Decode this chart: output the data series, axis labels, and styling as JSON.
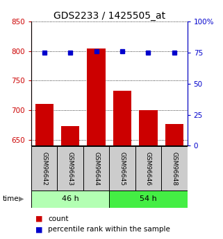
{
  "title": "GDS2233 / 1425505_at",
  "samples": [
    "GSM96642",
    "GSM96643",
    "GSM96644",
    "GSM96645",
    "GSM96646",
    "GSM96648"
  ],
  "counts": [
    711,
    673,
    804,
    733,
    700,
    677
  ],
  "percentiles": [
    75,
    75,
    76,
    76,
    75,
    75
  ],
  "group_labels": [
    "46 h",
    "54 h"
  ],
  "group_colors": [
    "#b3ffb3",
    "#44ee44"
  ],
  "ylim_left": [
    640,
    850
  ],
  "ylim_right": [
    0,
    100
  ],
  "yticks_left": [
    650,
    700,
    750,
    800,
    850
  ],
  "yticks_right": [
    0,
    25,
    50,
    75,
    100
  ],
  "bar_color": "#cc0000",
  "dot_color": "#0000cc",
  "bar_width": 0.7,
  "title_fontsize": 10,
  "tick_fontsize": 7.5,
  "legend_fontsize": 7.5,
  "sample_box_color": "#cccccc",
  "n_group1": 3,
  "n_group2": 3
}
